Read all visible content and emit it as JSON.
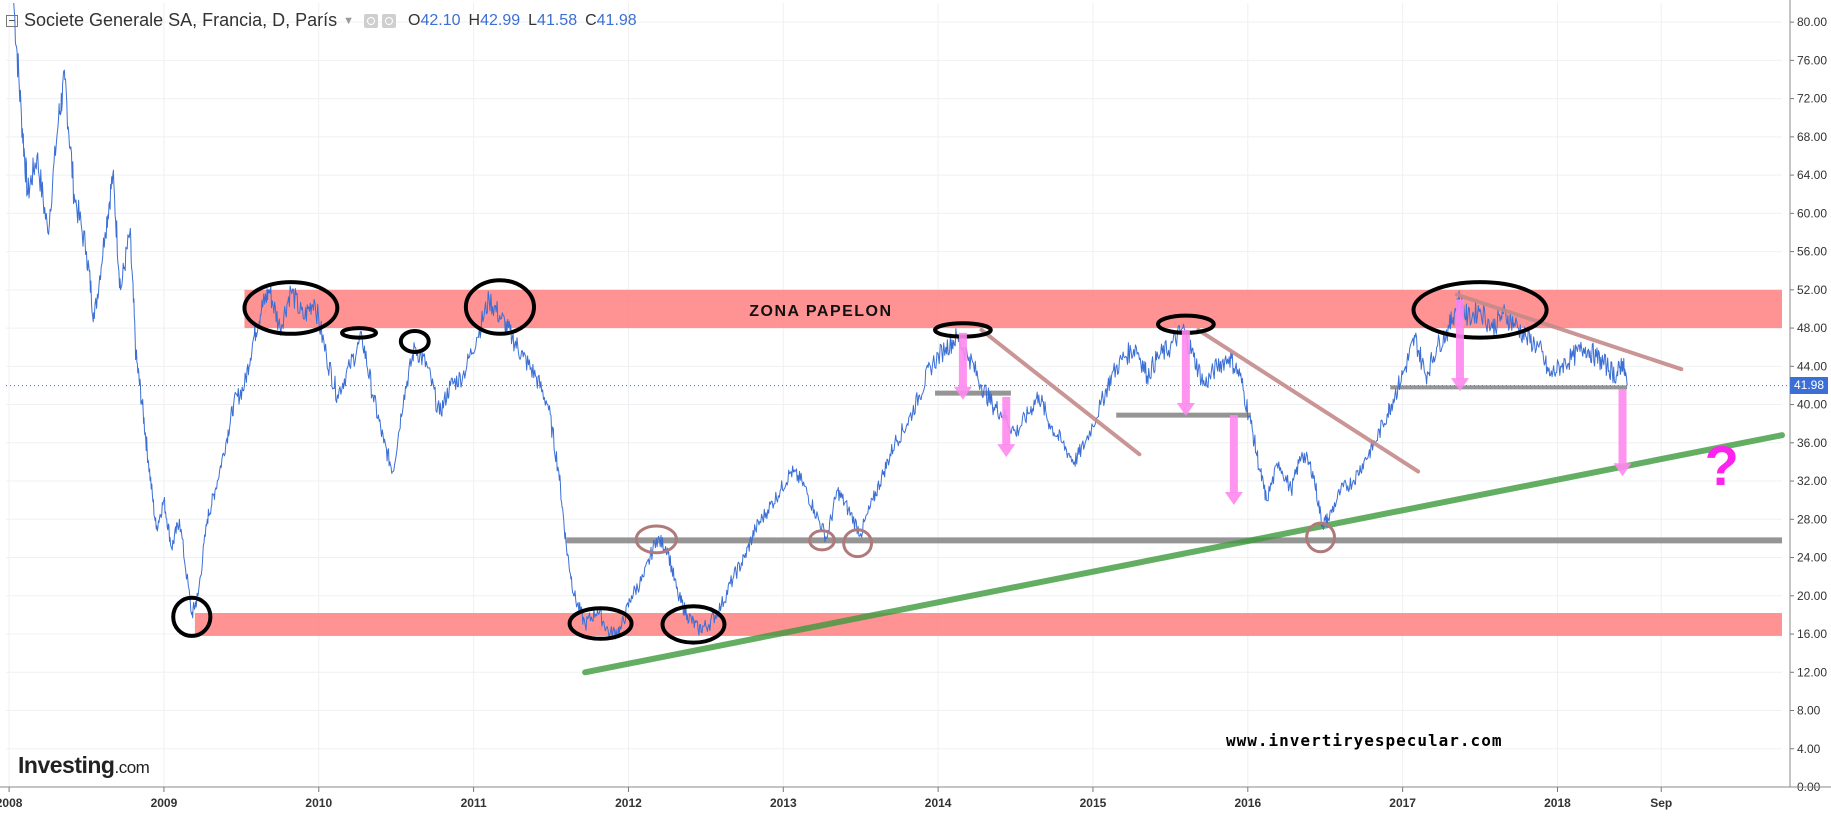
{
  "legend": {
    "title": "Societe Generale SA, Francia, D, París",
    "o_label": "O",
    "o_value": "42.10",
    "h_label": "H",
    "h_value": "42.99",
    "l_label": "L",
    "l_value": "41.58",
    "c_label": "C",
    "c_value": "41.98"
  },
  "logo": {
    "brand": "Investing",
    "suffix": ".com"
  },
  "watermark": "www.invertiryespecular.com",
  "annotations": {
    "zone_label": "ZONA PAPELON",
    "question_mark": "?"
  },
  "colors": {
    "price_line": "#3b6fd6",
    "zone_fill": "#ff8080",
    "support_line": "#8a8a8a",
    "trend_green": "#3d9a3d",
    "trend_brown": "#c48a8a",
    "arrow_pink": "#ff88ee",
    "badge": "#3b6fd6"
  },
  "chart_data": {
    "type": "line",
    "title": "Societe Generale SA, Francia, D, París",
    "xlabel": "",
    "ylabel": "",
    "ylim": [
      0,
      82
    ],
    "xlim": [
      2007.98,
      2019.45
    ],
    "grid": true,
    "y_ticks": [
      "0.00",
      "4.00",
      "8.00",
      "12.00",
      "16.00",
      "20.00",
      "24.00",
      "28.00",
      "32.00",
      "36.00",
      "40.00",
      "44.00",
      "48.00",
      "52.00",
      "56.00",
      "60.00",
      "64.00",
      "68.00",
      "72.00",
      "76.00",
      "80.00"
    ],
    "x_ticks": [
      {
        "label": "2008",
        "x": 2008.0
      },
      {
        "label": "2009",
        "x": 2009.0
      },
      {
        "label": "2010",
        "x": 2010.0
      },
      {
        "label": "2011",
        "x": 2011.0
      },
      {
        "label": "2012",
        "x": 2012.0
      },
      {
        "label": "2013",
        "x": 2013.0
      },
      {
        "label": "2014",
        "x": 2014.0
      },
      {
        "label": "2015",
        "x": 2015.0
      },
      {
        "label": "2016",
        "x": 2016.0
      },
      {
        "label": "2017",
        "x": 2017.0
      },
      {
        "label": "2018",
        "x": 2018.0
      },
      {
        "label": "Sep",
        "x": 2018.67
      }
    ],
    "last_value": "41.98",
    "series": [
      {
        "values": [
          [
            2008.03,
            82.0
          ],
          [
            2008.08,
            70.0
          ],
          [
            2008.12,
            62.0
          ],
          [
            2008.18,
            66.0
          ],
          [
            2008.25,
            58.0
          ],
          [
            2008.32,
            70.0
          ],
          [
            2008.36,
            74.0
          ],
          [
            2008.42,
            62.0
          ],
          [
            2008.5,
            56.0
          ],
          [
            2008.55,
            49.0
          ],
          [
            2008.62,
            58.0
          ],
          [
            2008.67,
            64.0
          ],
          [
            2008.72,
            52.0
          ],
          [
            2008.78,
            58.0
          ],
          [
            2008.82,
            45.0
          ],
          [
            2008.86,
            40.0
          ],
          [
            2008.9,
            34.0
          ],
          [
            2008.95,
            27.0
          ],
          [
            2009.0,
            30.0
          ],
          [
            2009.05,
            25.0
          ],
          [
            2009.1,
            28.0
          ],
          [
            2009.18,
            18.0
          ],
          [
            2009.22,
            20.0
          ],
          [
            2009.28,
            28.0
          ],
          [
            2009.33,
            31.0
          ],
          [
            2009.4,
            36.0
          ],
          [
            2009.45,
            40.0
          ],
          [
            2009.52,
            42.0
          ],
          [
            2009.58,
            47.0
          ],
          [
            2009.63,
            50.0
          ],
          [
            2009.68,
            52.0
          ],
          [
            2009.75,
            48.0
          ],
          [
            2009.82,
            52.0
          ],
          [
            2009.9,
            49.0
          ],
          [
            2009.97,
            51.0
          ],
          [
            2010.05,
            45.0
          ],
          [
            2010.12,
            41.0
          ],
          [
            2010.2,
            44.0
          ],
          [
            2010.28,
            47.0
          ],
          [
            2010.35,
            41.0
          ],
          [
            2010.42,
            36.0
          ],
          [
            2010.48,
            33.0
          ],
          [
            2010.55,
            41.0
          ],
          [
            2010.62,
            46.0
          ],
          [
            2010.7,
            44.0
          ],
          [
            2010.78,
            39.0
          ],
          [
            2010.85,
            42.0
          ],
          [
            2010.93,
            43.0
          ],
          [
            2011.02,
            47.0
          ],
          [
            2011.1,
            51.0
          ],
          [
            2011.18,
            49.0
          ],
          [
            2011.25,
            47.0
          ],
          [
            2011.32,
            45.0
          ],
          [
            2011.4,
            43.0
          ],
          [
            2011.48,
            40.0
          ],
          [
            2011.55,
            33.0
          ],
          [
            2011.6,
            25.0
          ],
          [
            2011.65,
            20.0
          ],
          [
            2011.72,
            17.0
          ],
          [
            2011.8,
            18.5
          ],
          [
            2011.88,
            16.0
          ],
          [
            2011.95,
            16.5
          ],
          [
            2012.02,
            20.0
          ],
          [
            2012.1,
            22.0
          ],
          [
            2012.18,
            26.0
          ],
          [
            2012.25,
            25.0
          ],
          [
            2012.32,
            20.0
          ],
          [
            2012.38,
            18.0
          ],
          [
            2012.45,
            16.5
          ],
          [
            2012.52,
            17.0
          ],
          [
            2012.6,
            19.0
          ],
          [
            2012.68,
            22.0
          ],
          [
            2012.75,
            24.0
          ],
          [
            2012.82,
            27.0
          ],
          [
            2012.9,
            29.0
          ],
          [
            2012.98,
            31.0
          ],
          [
            2013.05,
            33.0
          ],
          [
            2013.12,
            32.0
          ],
          [
            2013.2,
            29.0
          ],
          [
            2013.28,
            26.0
          ],
          [
            2013.35,
            31.0
          ],
          [
            2013.42,
            29.0
          ],
          [
            2013.5,
            26.5
          ],
          [
            2013.58,
            30.0
          ],
          [
            2013.65,
            33.0
          ],
          [
            2013.72,
            36.0
          ],
          [
            2013.8,
            38.0
          ],
          [
            2013.88,
            41.0
          ],
          [
            2013.95,
            44.0
          ],
          [
            2014.05,
            46.0
          ],
          [
            2014.12,
            47.0
          ],
          [
            2014.2,
            45.0
          ],
          [
            2014.28,
            42.0
          ],
          [
            2014.35,
            40.0
          ],
          [
            2014.42,
            39.0
          ],
          [
            2014.5,
            37.0
          ],
          [
            2014.58,
            39.0
          ],
          [
            2014.65,
            41.0
          ],
          [
            2014.72,
            38.0
          ],
          [
            2014.8,
            36.0
          ],
          [
            2014.88,
            34.0
          ],
          [
            2014.95,
            36.0
          ],
          [
            2015.05,
            40.0
          ],
          [
            2015.12,
            43.0
          ],
          [
            2015.2,
            45.0
          ],
          [
            2015.28,
            46.0
          ],
          [
            2015.35,
            43.0
          ],
          [
            2015.42,
            45.0
          ],
          [
            2015.5,
            46.0
          ],
          [
            2015.58,
            48.0
          ],
          [
            2015.65,
            45.0
          ],
          [
            2015.72,
            42.0
          ],
          [
            2015.8,
            44.0
          ],
          [
            2015.88,
            45.0
          ],
          [
            2015.95,
            43.0
          ],
          [
            2016.02,
            38.0
          ],
          [
            2016.08,
            33.0
          ],
          [
            2016.12,
            30.0
          ],
          [
            2016.2,
            34.0
          ],
          [
            2016.28,
            31.0
          ],
          [
            2016.35,
            35.0
          ],
          [
            2016.42,
            33.0
          ],
          [
            2016.48,
            27.5
          ],
          [
            2016.52,
            28.0
          ],
          [
            2016.6,
            31.0
          ],
          [
            2016.68,
            32.0
          ],
          [
            2016.75,
            34.0
          ],
          [
            2016.82,
            36.0
          ],
          [
            2016.9,
            39.0
          ],
          [
            2016.95,
            41.0
          ],
          [
            2017.02,
            44.0
          ],
          [
            2017.08,
            47.0
          ],
          [
            2017.15,
            43.0
          ],
          [
            2017.22,
            46.0
          ],
          [
            2017.3,
            48.0
          ],
          [
            2017.36,
            51.0
          ],
          [
            2017.42,
            49.0
          ],
          [
            2017.5,
            50.0
          ],
          [
            2017.58,
            48.0
          ],
          [
            2017.65,
            49.5
          ],
          [
            2017.72,
            48.5
          ],
          [
            2017.8,
            47.0
          ],
          [
            2017.88,
            46.0
          ],
          [
            2017.95,
            43.0
          ],
          [
            2018.02,
            44.0
          ],
          [
            2018.1,
            45.0
          ],
          [
            2018.18,
            46.0
          ],
          [
            2018.25,
            45.0
          ],
          [
            2018.32,
            44.0
          ],
          [
            2018.38,
            43.0
          ],
          [
            2018.42,
            44.5
          ],
          [
            2018.45,
            41.98
          ]
        ]
      }
    ],
    "annotations": {
      "zones": [
        {
          "x_from": 2009.52,
          "x_to": 2019.45,
          "y_from": 48.0,
          "y_to": 52.0
        },
        {
          "x_from": 2009.2,
          "x_to": 2019.45,
          "y_from": 15.8,
          "y_to": 18.2
        }
      ],
      "support_lines": [
        {
          "x_from": 2011.6,
          "x_to": 2019.45,
          "y": 25.8,
          "width": 6
        },
        {
          "x_from": 2013.98,
          "x_to": 2014.47,
          "y": 41.2,
          "width": 5
        },
        {
          "x_from": 2015.15,
          "x_to": 2016.02,
          "y": 38.9,
          "width": 5
        },
        {
          "x_from": 2016.92,
          "x_to": 2018.45,
          "y": 41.8,
          "width": 4
        }
      ],
      "trend_lines": [
        {
          "kind": "green",
          "from": [
            2011.72,
            12.0
          ],
          "to": [
            2019.45,
            36.8
          ]
        },
        {
          "kind": "brown",
          "from": [
            2014.28,
            47.8
          ],
          "to": [
            2015.3,
            34.8
          ]
        },
        {
          "kind": "brown",
          "from": [
            2015.68,
            47.8
          ],
          "to": [
            2017.1,
            33.0
          ]
        },
        {
          "kind": "brown",
          "from": [
            2017.35,
            51.5
          ],
          "to": [
            2018.8,
            43.7
          ]
        }
      ],
      "black_circles": [
        {
          "cx": 2009.18,
          "cy": 17.8,
          "rx": 0.12,
          "ry": 2.0
        },
        {
          "cx": 2009.82,
          "cy": 50.1,
          "rx": 0.3,
          "ry": 2.7
        },
        {
          "cx": 2010.26,
          "cy": 47.5,
          "rx": 0.11,
          "ry": 0.5
        },
        {
          "cx": 2010.62,
          "cy": 46.6,
          "rx": 0.09,
          "ry": 1.1
        },
        {
          "cx": 2011.17,
          "cy": 50.2,
          "rx": 0.22,
          "ry": 2.8
        },
        {
          "cx": 2011.82,
          "cy": 17.1,
          "rx": 0.2,
          "ry": 1.6
        },
        {
          "cx": 2012.42,
          "cy": 17.0,
          "rx": 0.2,
          "ry": 1.9
        },
        {
          "cx": 2014.16,
          "cy": 47.8,
          "rx": 0.18,
          "ry": 0.7
        },
        {
          "cx": 2015.6,
          "cy": 48.4,
          "rx": 0.18,
          "ry": 0.9
        },
        {
          "cx": 2017.5,
          "cy": 49.9,
          "rx": 0.43,
          "ry": 2.9
        }
      ],
      "brown_circles": [
        {
          "cx": 2012.18,
          "cy": 25.9,
          "rx": 0.13,
          "ry": 1.4
        },
        {
          "cx": 2013.25,
          "cy": 25.8,
          "rx": 0.08,
          "ry": 1.0
        },
        {
          "cx": 2013.48,
          "cy": 25.5,
          "rx": 0.09,
          "ry": 1.4
        },
        {
          "cx": 2016.47,
          "cy": 26.1,
          "rx": 0.09,
          "ry": 1.5
        }
      ],
      "pink_arrows": [
        {
          "x": 2014.16,
          "y_from": 47.5,
          "y_to": 40.5
        },
        {
          "x": 2014.44,
          "y_from": 40.8,
          "y_to": 34.5
        },
        {
          "x": 2015.6,
          "y_from": 47.8,
          "y_to": 38.8
        },
        {
          "x": 2015.91,
          "y_from": 38.9,
          "y_to": 29.5
        },
        {
          "x": 2017.37,
          "y_from": 51.0,
          "y_to": 41.4
        },
        {
          "x": 2018.42,
          "y_from": 41.6,
          "y_to": 32.5
        }
      ]
    }
  }
}
